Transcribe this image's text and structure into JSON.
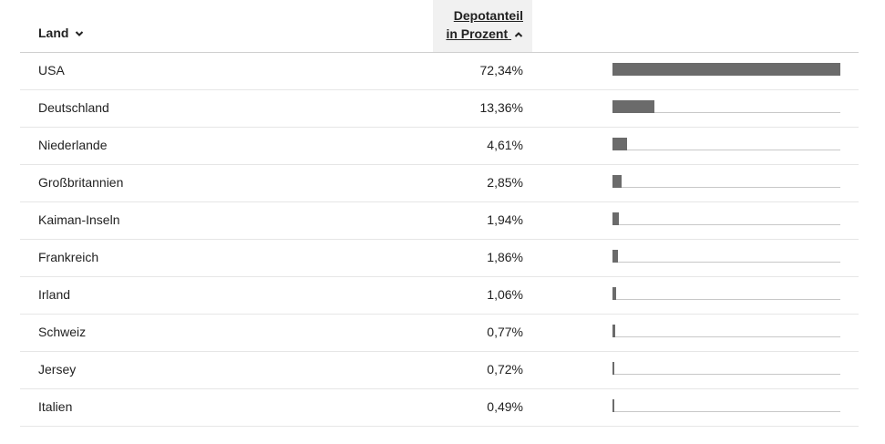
{
  "table": {
    "header": {
      "land": "Land",
      "share_line1": "Depotanteil",
      "share_line2": "in Prozent"
    },
    "rows": [
      {
        "land": "USA",
        "value": 72.34,
        "label": "72,34%"
      },
      {
        "land": "Deutschland",
        "value": 13.36,
        "label": "13,36%"
      },
      {
        "land": "Niederlande",
        "value": 4.61,
        "label": "4,61%"
      },
      {
        "land": "Großbritannien",
        "value": 2.85,
        "label": "2,85%"
      },
      {
        "land": "Kaiman-Inseln",
        "value": 1.94,
        "label": "1,94%"
      },
      {
        "land": "Frankreich",
        "value": 1.86,
        "label": "1,86%"
      },
      {
        "land": "Irland",
        "value": 1.06,
        "label": "1,06%"
      },
      {
        "land": "Schweiz",
        "value": 0.77,
        "label": "0,77%"
      },
      {
        "land": "Jersey",
        "value": 0.72,
        "label": "0,72%"
      },
      {
        "land": "Italien",
        "value": 0.49,
        "label": "0,49%"
      }
    ]
  }
}
